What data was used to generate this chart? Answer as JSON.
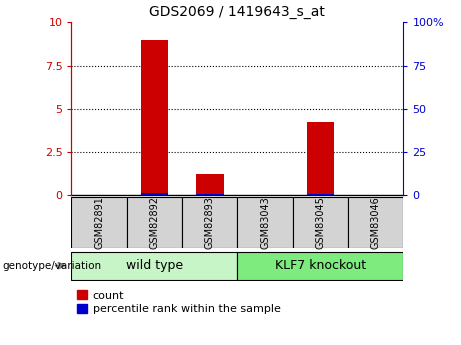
{
  "title": "GDS2069 / 1419643_s_at",
  "categories": [
    "GSM82891",
    "GSM82892",
    "GSM82893",
    "GSM83043",
    "GSM83045",
    "GSM83046"
  ],
  "count_values": [
    0,
    9.0,
    1.2,
    0,
    4.2,
    0
  ],
  "percentile_values": [
    0,
    1.0,
    0.3,
    0,
    0.5,
    0
  ],
  "group_labels": [
    "wild type",
    "KLF7 knockout"
  ],
  "left_axis_color": "#cc0000",
  "right_axis_color": "#0000cc",
  "left_ylim": [
    0,
    10
  ],
  "right_ylim": [
    0,
    100
  ],
  "left_yticks": [
    0,
    2.5,
    5,
    7.5,
    10
  ],
  "right_yticks": [
    0,
    25,
    50,
    75,
    100
  ],
  "left_yticklabels": [
    "0",
    "2.5",
    "5",
    "7.5",
    "10"
  ],
  "right_yticklabels": [
    "0",
    "25",
    "50",
    "75",
    "100%"
  ],
  "count_color": "#cc0000",
  "percentile_color": "#0000cc",
  "tick_bg_color": "#d3d3d3",
  "group_bg_color_wt": "#c8f5c8",
  "group_bg_color_ko": "#7deb7d",
  "legend_count_label": "count",
  "legend_percentile_label": "percentile rank within the sample",
  "genotype_label": "genotype/variation",
  "xlabel_fontsize": 7,
  "title_fontsize": 10,
  "bar_width": 0.5
}
